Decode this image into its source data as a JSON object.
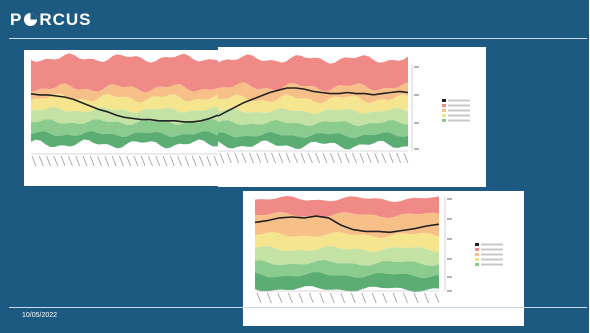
{
  "header": {
    "logo_text": "PORCUS",
    "logo_mark_icon": "pie-chart-icon"
  },
  "footer": {
    "date": "10/05/2022"
  },
  "colors": {
    "background": "#1d5a82",
    "band_red": "#f08a86",
    "band_orange": "#f8c089",
    "band_yellow": "#f5e58f",
    "band_light_green": "#c3e2a4",
    "band_green": "#8ccb8e",
    "band_dark_green": "#5cad74",
    "line": "#222222"
  },
  "chart_data": [
    {
      "type": "area",
      "title": "",
      "xlabel": "",
      "ylabel": "",
      "legend_position": "right",
      "note": "Wide seasonal percentile band chart split across two panels; the thick black line shows the current series. Legend and tick labels are too small to read.",
      "series": [
        {
          "values": [
            50,
            49,
            49,
            48,
            47,
            45,
            42,
            39,
            36,
            34,
            31,
            29,
            28,
            27,
            27,
            26,
            26,
            26,
            25,
            25,
            26,
            28,
            31,
            35,
            39,
            43,
            46,
            49,
            52,
            54,
            56,
            56,
            55,
            53,
            52,
            51,
            51,
            52,
            51,
            51,
            50,
            51,
            52,
            53,
            52
          ]
        }
      ]
    },
    {
      "type": "area",
      "title": "",
      "xlabel": "",
      "ylabel": "",
      "legend_position": "right",
      "note": "Smaller percentile band chart; the thick black line shows the current series. Legend and tick labels are too small to read.",
      "series": [
        {
          "values": [
            74,
            76,
            79,
            80,
            79,
            81,
            79,
            71,
            66,
            64,
            64,
            63,
            65,
            67,
            70,
            72
          ]
        }
      ]
    }
  ]
}
